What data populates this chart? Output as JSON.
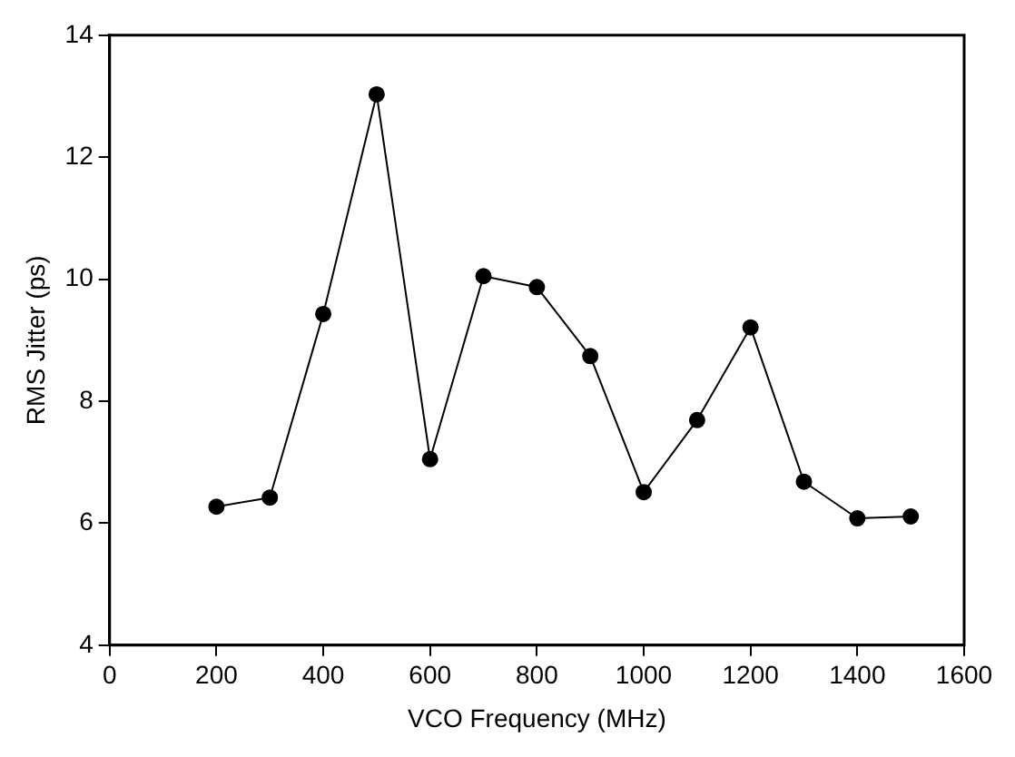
{
  "chart_data": {
    "type": "line",
    "xlabel": "VCO Frequency (MHz)",
    "ylabel": "RMS Jitter (ps)",
    "x": [
      200,
      300,
      400,
      500,
      600,
      700,
      800,
      900,
      1000,
      1100,
      1200,
      1300,
      1400,
      1500
    ],
    "series": [
      {
        "color": "#000000",
        "values": [
          6.27,
          6.42,
          9.43,
          13.03,
          7.05,
          10.05,
          9.87,
          8.74,
          6.51,
          7.69,
          9.21,
          6.68,
          6.08,
          6.11
        ]
      }
    ],
    "xlim": [
      0,
      1600
    ],
    "xticks": [
      0,
      200,
      400,
      600,
      800,
      1000,
      1200,
      1400,
      1600
    ],
    "ylim": [
      4,
      14
    ],
    "yticks": [
      4,
      6,
      8,
      10,
      12,
      14
    ],
    "grid": false,
    "legend": false,
    "marker": "circle",
    "line_style": "solid"
  }
}
